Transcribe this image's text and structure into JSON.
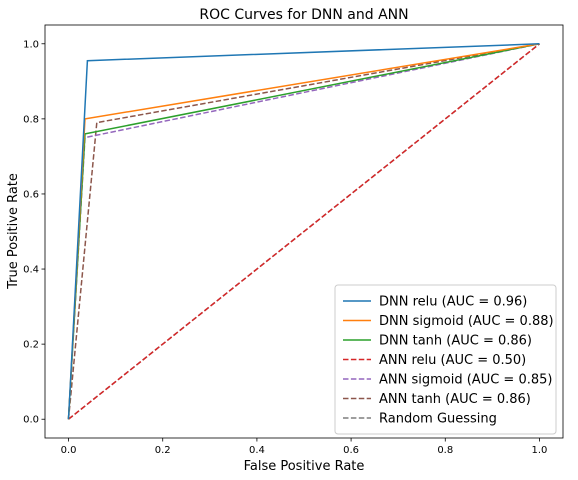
{
  "chart_data": {
    "type": "line",
    "title": "ROC Curves for DNN and ANN",
    "xlabel": "False Positive Rate",
    "ylabel": "True Positive Rate",
    "xlim": [
      -0.05,
      1.05
    ],
    "ylim": [
      -0.05,
      1.05
    ],
    "xticks": [
      "0.0",
      "0.2",
      "0.4",
      "0.6",
      "0.8",
      "1.0"
    ],
    "yticks": [
      "0.0",
      "0.2",
      "0.4",
      "0.6",
      "0.8",
      "1.0"
    ],
    "grid": false,
    "legend_position": "lower-right",
    "series": [
      {
        "name": "DNN relu (AUC = 0.96)",
        "color": "#1f77b4",
        "dash": "solid",
        "x": [
          0,
          0.04,
          1
        ],
        "y": [
          0,
          0.955,
          1
        ]
      },
      {
        "name": "DNN sigmoid (AUC = 0.88)",
        "color": "#ff7f0e",
        "dash": "solid",
        "x": [
          0,
          0.035,
          1
        ],
        "y": [
          0,
          0.8,
          1
        ]
      },
      {
        "name": "DNN tanh (AUC = 0.86)",
        "color": "#2ca02c",
        "dash": "solid",
        "x": [
          0,
          0.035,
          1
        ],
        "y": [
          0,
          0.76,
          1
        ]
      },
      {
        "name": "ANN relu (AUC = 0.50)",
        "color": "#d62728",
        "dash": "dashed",
        "x": [
          0,
          1
        ],
        "y": [
          0,
          1
        ]
      },
      {
        "name": "ANN sigmoid (AUC = 0.85)",
        "color": "#9467bd",
        "dash": "dashed",
        "x": [
          0,
          0.035,
          1
        ],
        "y": [
          0,
          0.75,
          1
        ]
      },
      {
        "name": "ANN tanh (AUC = 0.86)",
        "color": "#8c564b",
        "dash": "dashed",
        "x": [
          0,
          0.06,
          1
        ],
        "y": [
          0,
          0.79,
          1
        ]
      },
      {
        "name": "Random Guessing",
        "color": "#7f7f7f",
        "dash": "dashed",
        "x": [
          0,
          1
        ],
        "y": [
          0,
          1
        ]
      }
    ]
  }
}
